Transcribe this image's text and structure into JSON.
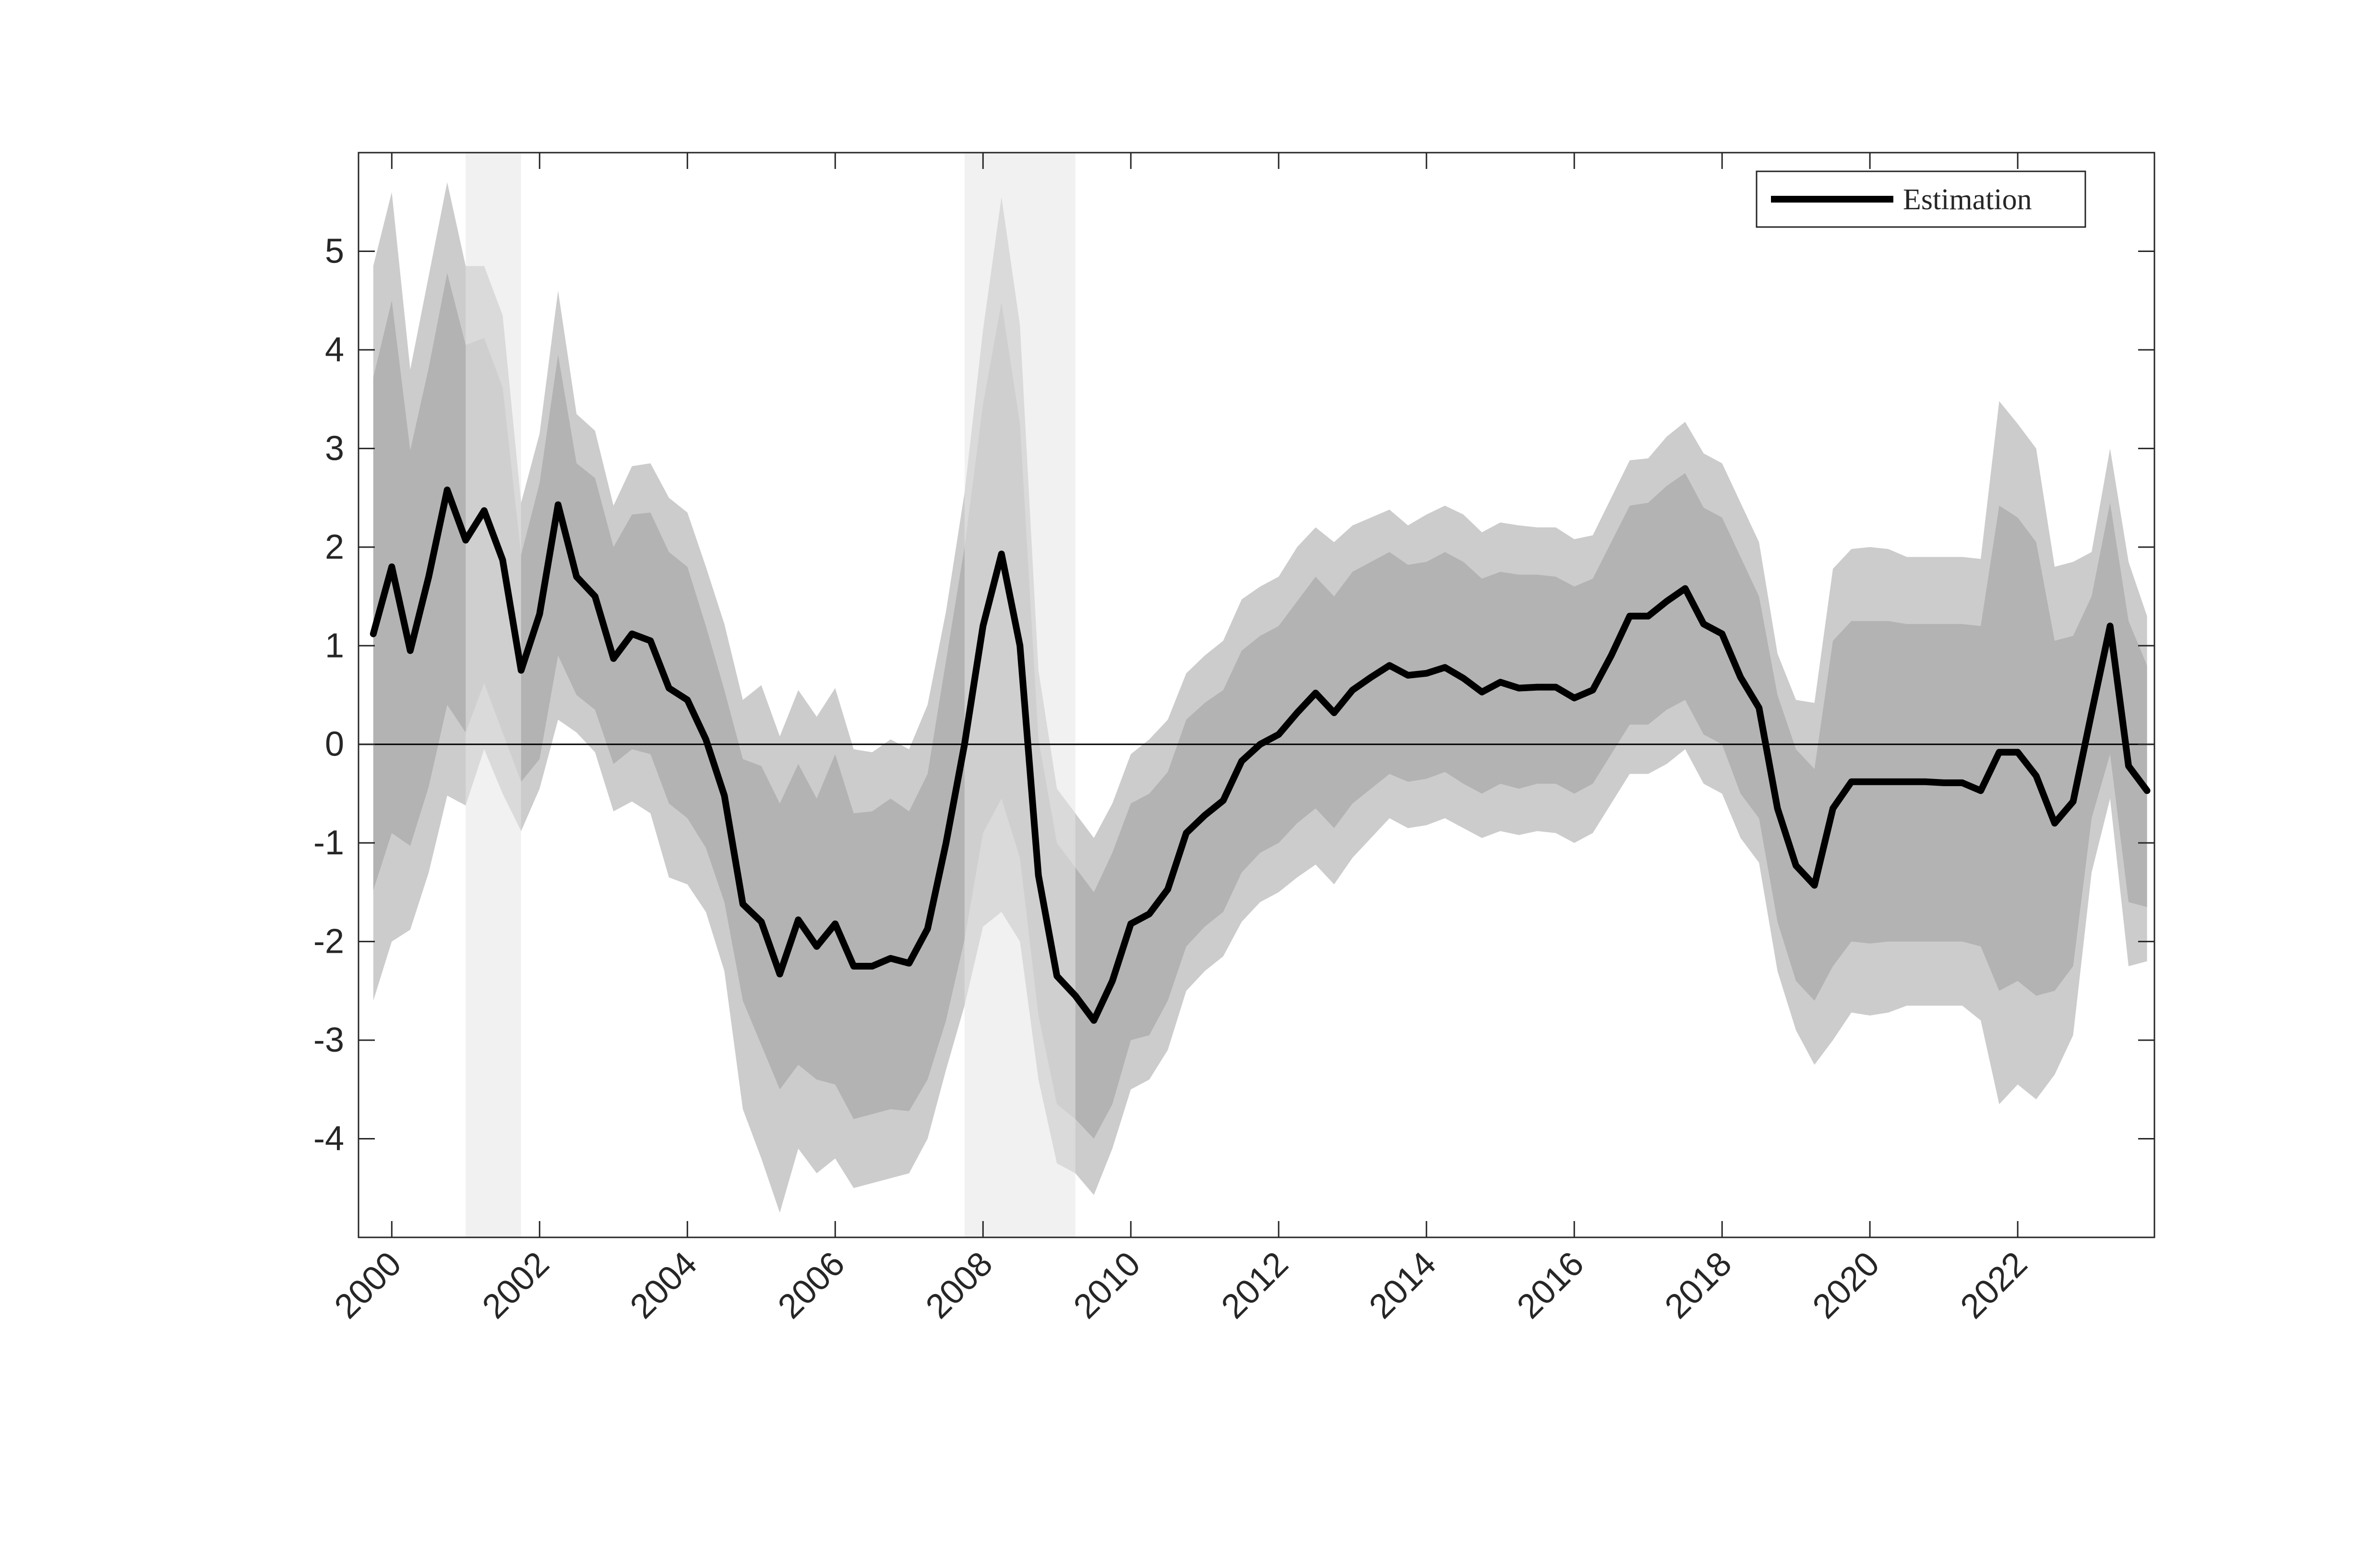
{
  "chart_data": {
    "type": "line",
    "title": "",
    "xlabel": "",
    "ylabel": "",
    "xlim": [
      1999.55,
      2023.85
    ],
    "ylim": [
      -5.0,
      6.0
    ],
    "x_ticks": [
      2000,
      2002,
      2004,
      2006,
      2008,
      2010,
      2012,
      2014,
      2016,
      2018,
      2020,
      2022
    ],
    "x_tick_labels": [
      "2000",
      "2002",
      "2004",
      "2006",
      "2008",
      "2010",
      "2012",
      "2014",
      "2016",
      "2018",
      "2020",
      "2022"
    ],
    "y_ticks": [
      -4,
      -3,
      -2,
      -1,
      0,
      1,
      2,
      3,
      4,
      5
    ],
    "y_tick_labels": [
      "-4",
      "-3",
      "-2",
      "-1",
      "0",
      "1",
      "2",
      "3",
      "4",
      "5"
    ],
    "grid": false,
    "zero_line": true,
    "legend": {
      "placement": "top-right",
      "entries": [
        "Estimation"
      ]
    },
    "colors": {
      "line": "#000000",
      "band_outer": "#cccccc",
      "band_inner": "#b3b3b3",
      "recession": "#e6e6e6",
      "axis": "#262626"
    },
    "shaded_periods": [
      [
        2001.0,
        2001.75
      ],
      [
        2007.75,
        2009.25
      ]
    ],
    "x": [
      1999.75,
      2000.0,
      2000.25,
      2000.5,
      2000.75,
      2001.0,
      2001.25,
      2001.5,
      2001.75,
      2002.0,
      2002.25,
      2002.5,
      2002.75,
      2003.0,
      2003.25,
      2003.5,
      2003.75,
      2004.0,
      2004.25,
      2004.5,
      2004.75,
      2005.0,
      2005.25,
      2005.5,
      2005.75,
      2006.0,
      2006.25,
      2006.5,
      2006.75,
      2007.0,
      2007.25,
      2007.5,
      2007.75,
      2008.0,
      2008.25,
      2008.5,
      2008.75,
      2009.0,
      2009.25,
      2009.5,
      2009.75,
      2010.0,
      2010.25,
      2010.5,
      2010.75,
      2011.0,
      2011.25,
      2011.5,
      2011.75,
      2012.0,
      2012.25,
      2012.5,
      2012.75,
      2013.0,
      2013.25,
      2013.5,
      2013.75,
      2014.0,
      2014.25,
      2014.5,
      2014.75,
      2015.0,
      2015.25,
      2015.5,
      2015.75,
      2016.0,
      2016.25,
      2016.5,
      2016.75,
      2017.0,
      2017.25,
      2017.5,
      2017.75,
      2018.0,
      2018.25,
      2018.5,
      2018.75,
      2019.0,
      2019.25,
      2019.5,
      2019.75,
      2020.0,
      2020.25,
      2020.5,
      2020.75,
      2021.0,
      2021.25,
      2021.5,
      2021.75,
      2022.0,
      2022.25,
      2022.5,
      2022.75,
      2023.0,
      2023.25,
      2023.5,
      2023.75
    ],
    "series": [
      {
        "name": "Estimation",
        "values": [
          1.12,
          1.8,
          0.95,
          1.7,
          2.58,
          2.07,
          2.37,
          1.87,
          0.75,
          1.32,
          2.43,
          1.7,
          1.5,
          0.87,
          1.12,
          1.05,
          0.57,
          0.45,
          0.05,
          -0.52,
          -1.62,
          -1.8,
          -2.33,
          -1.78,
          -2.05,
          -1.82,
          -2.25,
          -2.25,
          -2.17,
          -2.22,
          -1.87,
          -1.0,
          0.0,
          1.2,
          1.93,
          1.0,
          -1.33,
          -2.35,
          -2.55,
          -2.8,
          -2.4,
          -1.82,
          -1.72,
          -1.47,
          -0.9,
          -0.72,
          -0.57,
          -0.17,
          0.0,
          0.1,
          0.32,
          0.52,
          0.32,
          0.55,
          0.68,
          0.8,
          0.7,
          0.72,
          0.78,
          0.67,
          0.53,
          0.63,
          0.57,
          0.58,
          0.58,
          0.47,
          0.55,
          0.9,
          1.3,
          1.3,
          1.45,
          1.58,
          1.22,
          1.12,
          0.68,
          0.37,
          -0.65,
          -1.23,
          -1.43,
          -0.65,
          -0.38,
          -0.38,
          -0.38,
          -0.38,
          -0.38,
          -0.39,
          -0.39,
          -0.47,
          -0.08,
          -0.08,
          -0.32,
          -0.8,
          -0.58,
          0.32,
          1.2,
          -0.22,
          -0.47
        ]
      }
    ],
    "band_inner": {
      "lower": [
        -1.48,
        -0.9,
        -1.03,
        -0.43,
        0.4,
        0.12,
        0.62,
        0.12,
        -0.38,
        -0.15,
        0.9,
        0.5,
        0.35,
        -0.2,
        -0.05,
        -0.1,
        -0.6,
        -0.75,
        -1.05,
        -1.6,
        -2.6,
        -3.05,
        -3.5,
        -3.25,
        -3.4,
        -3.45,
        -3.8,
        -3.75,
        -3.7,
        -3.72,
        -3.4,
        -2.8,
        -1.98,
        -0.9,
        -0.55,
        -1.15,
        -2.75,
        -3.65,
        -3.8,
        -4.0,
        -3.65,
        -3.0,
        -2.95,
        -2.6,
        -2.05,
        -1.85,
        -1.7,
        -1.3,
        -1.1,
        -1.0,
        -0.8,
        -0.65,
        -0.85,
        -0.6,
        -0.45,
        -0.3,
        -0.38,
        -0.35,
        -0.28,
        -0.4,
        -0.5,
        -0.4,
        -0.45,
        -0.4,
        -0.4,
        -0.5,
        -0.4,
        -0.1,
        0.2,
        0.2,
        0.35,
        0.45,
        0.1,
        0.0,
        -0.5,
        -0.75,
        -1.8,
        -2.4,
        -2.6,
        -2.25,
        -2.0,
        -2.02,
        -2.0,
        -2.0,
        -2.0,
        -2.0,
        -2.0,
        -2.05,
        -2.5,
        -2.4,
        -2.55,
        -2.5,
        -2.25,
        -0.75,
        -0.1,
        -1.6,
        -1.65
      ],
      "upper": [
        3.72,
        4.5,
        2.98,
        3.82,
        4.78,
        4.05,
        4.12,
        3.62,
        1.92,
        2.65,
        3.95,
        2.85,
        2.7,
        2.0,
        2.33,
        2.35,
        1.95,
        1.8,
        1.2,
        0.55,
        -0.15,
        -0.22,
        -0.6,
        -0.2,
        -0.55,
        -0.1,
        -0.7,
        -0.68,
        -0.55,
        -0.68,
        -0.3,
        0.85,
        2.0,
        3.45,
        4.48,
        3.25,
        0.05,
        -1.0,
        -1.25,
        -1.5,
        -1.1,
        -0.6,
        -0.5,
        -0.28,
        0.25,
        0.42,
        0.55,
        0.95,
        1.1,
        1.2,
        1.45,
        1.7,
        1.5,
        1.75,
        1.85,
        1.95,
        1.82,
        1.85,
        1.95,
        1.85,
        1.68,
        1.75,
        1.72,
        1.72,
        1.7,
        1.6,
        1.68,
        2.05,
        2.42,
        2.45,
        2.62,
        2.75,
        2.4,
        2.3,
        1.9,
        1.5,
        0.5,
        -0.05,
        -0.25,
        1.05,
        1.25,
        1.25,
        1.25,
        1.22,
        1.22,
        1.22,
        1.22,
        1.2,
        2.42,
        2.3,
        2.05,
        1.05,
        1.1,
        1.5,
        2.45,
        1.25,
        0.8
      ]
    },
    "band_outer": {
      "lower": [
        -2.6,
        -2.0,
        -1.88,
        -1.3,
        -0.52,
        -0.62,
        -0.05,
        -0.5,
        -0.88,
        -0.45,
        0.25,
        0.12,
        -0.08,
        -0.68,
        -0.58,
        -0.7,
        -1.35,
        -1.42,
        -1.7,
        -2.3,
        -3.7,
        -4.2,
        -4.75,
        -4.1,
        -4.35,
        -4.2,
        -4.5,
        -4.45,
        -4.4,
        -4.35,
        -4.0,
        -3.3,
        -2.65,
        -1.85,
        -1.7,
        -2.0,
        -3.4,
        -4.25,
        -4.35,
        -4.57,
        -4.1,
        -3.5,
        -3.4,
        -3.1,
        -2.5,
        -2.3,
        -2.15,
        -1.8,
        -1.6,
        -1.5,
        -1.35,
        -1.22,
        -1.42,
        -1.15,
        -0.95,
        -0.75,
        -0.85,
        -0.82,
        -0.75,
        -0.85,
        -0.95,
        -0.88,
        -0.92,
        -0.88,
        -0.9,
        -1.0,
        -0.9,
        -0.6,
        -0.3,
        -0.3,
        -0.2,
        -0.05,
        -0.4,
        -0.5,
        -0.95,
        -1.2,
        -2.3,
        -2.9,
        -3.25,
        -3.0,
        -2.72,
        -2.75,
        -2.72,
        -2.65,
        -2.65,
        -2.65,
        -2.65,
        -2.8,
        -3.65,
        -3.45,
        -3.6,
        -3.35,
        -2.95,
        -1.3,
        -0.55,
        -2.25,
        -2.2
      ],
      "upper": [
        4.85,
        5.6,
        3.8,
        4.75,
        5.7,
        4.85,
        4.85,
        4.35,
        2.45,
        3.15,
        4.6,
        3.35,
        3.18,
        2.42,
        2.82,
        2.85,
        2.5,
        2.35,
        1.8,
        1.22,
        0.45,
        0.6,
        0.08,
        0.55,
        0.28,
        0.57,
        -0.05,
        -0.08,
        0.05,
        -0.05,
        0.4,
        1.35,
        2.55,
        4.2,
        5.55,
        4.25,
        0.75,
        -0.45,
        -0.7,
        -0.95,
        -0.6,
        -0.1,
        0.05,
        0.25,
        0.72,
        0.9,
        1.05,
        1.47,
        1.6,
        1.7,
        2.0,
        2.2,
        2.05,
        2.22,
        2.3,
        2.38,
        2.22,
        2.33,
        2.42,
        2.33,
        2.15,
        2.25,
        2.22,
        2.2,
        2.2,
        2.08,
        2.12,
        2.5,
        2.88,
        2.9,
        3.12,
        3.27,
        2.95,
        2.85,
        2.45,
        2.05,
        0.92,
        0.45,
        0.42,
        1.78,
        1.98,
        2.0,
        1.98,
        1.9,
        1.9,
        1.9,
        1.9,
        1.88,
        3.48,
        3.25,
        3.0,
        1.8,
        1.85,
        1.95,
        3.0,
        1.85,
        1.3
      ]
    }
  }
}
